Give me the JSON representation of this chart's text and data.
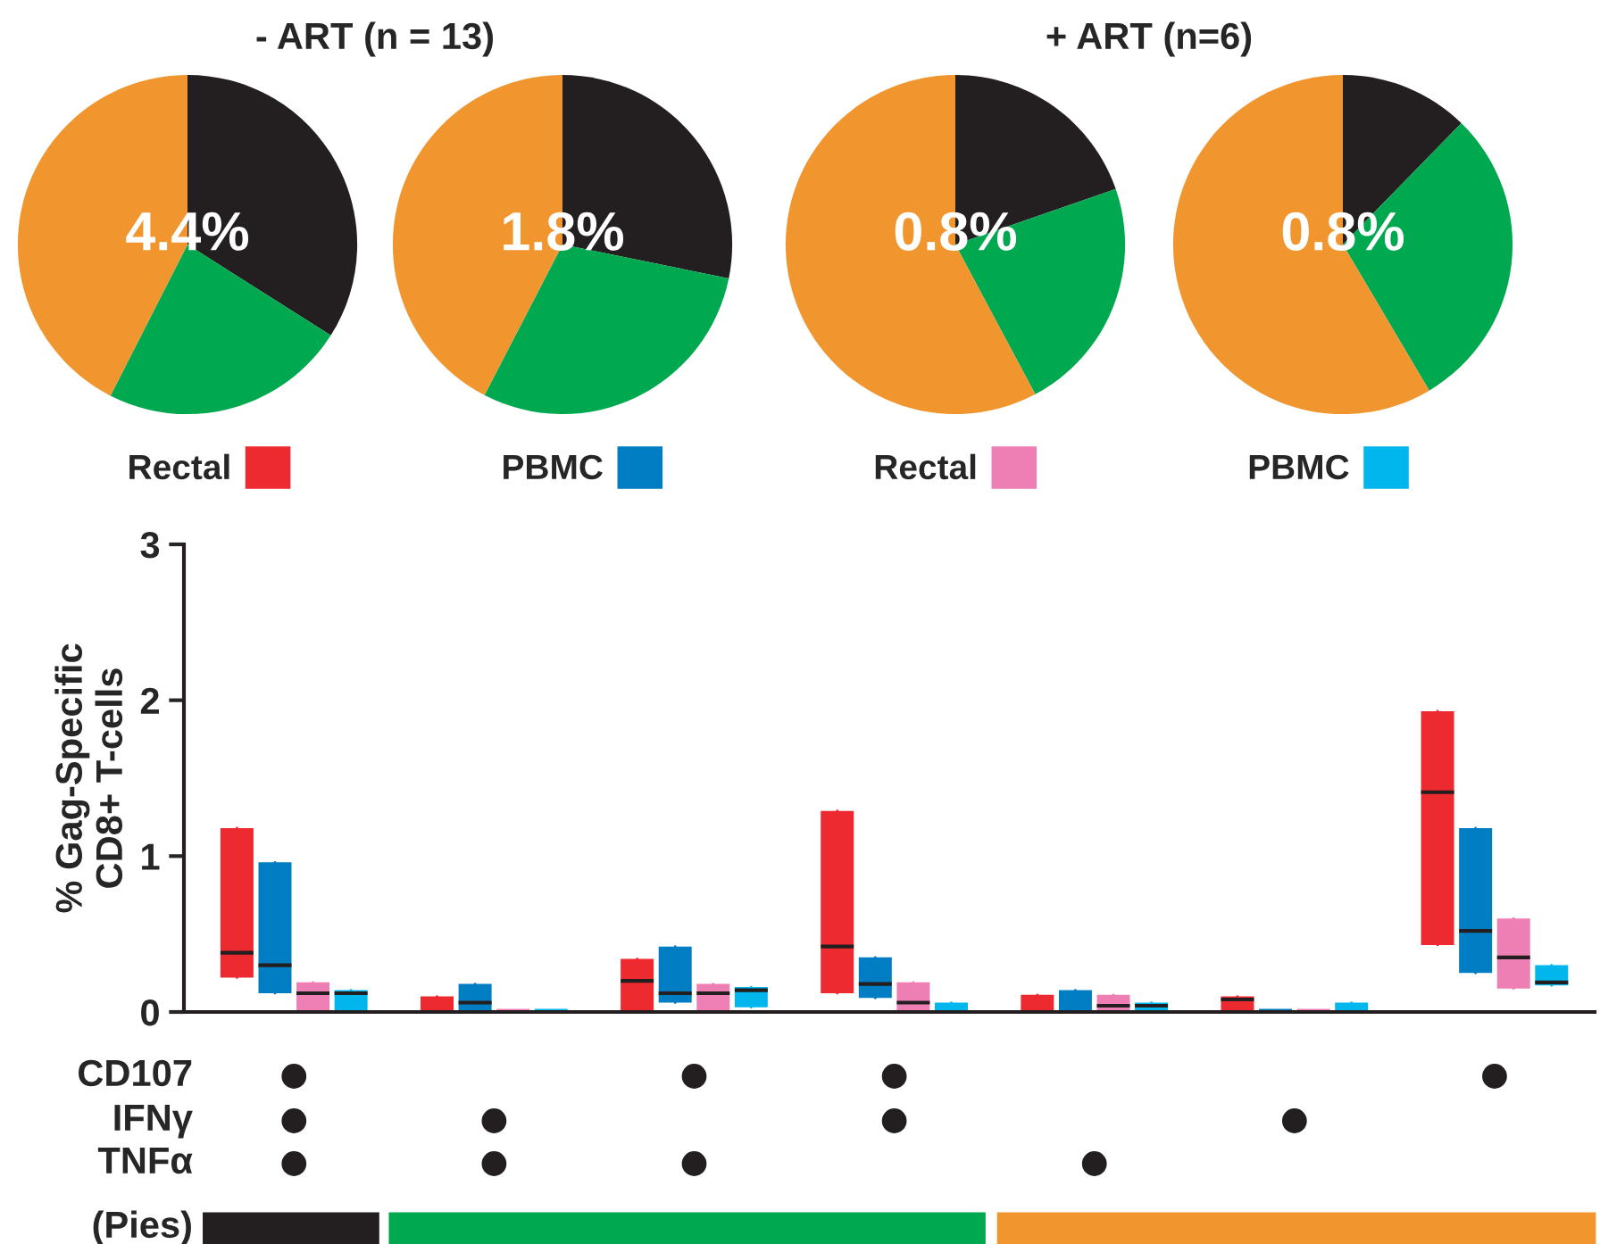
{
  "chart_data": [
    {
      "type": "pie",
      "title": "- ART (n = 13)",
      "categories": [
        null,
        null,
        null
      ],
      "values": [
        34,
        23.5,
        42.5
      ],
      "colors": [
        "#231f20",
        "#00a94f",
        "#f1962f"
      ],
      "annotations": [
        "4.4%"
      ]
    },
    {
      "type": "pie",
      "categories": [
        null,
        null,
        null
      ],
      "values": [
        28.2,
        29.4,
        42.4
      ],
      "colors": [
        "#231f20",
        "#00a94f",
        "#f1962f"
      ],
      "annotations": [
        "1.8%"
      ]
    },
    {
      "type": "pie",
      "title": "+ ART (n=6)",
      "categories": [
        null,
        null,
        null
      ],
      "values": [
        19.7,
        22.5,
        57.8
      ],
      "colors": [
        "#231f20",
        "#00a94f",
        "#f1962f"
      ],
      "annotations": [
        "0.8%"
      ]
    },
    {
      "type": "pie",
      "categories": [
        null,
        null,
        null
      ],
      "values": [
        12.3,
        29.2,
        58.5
      ],
      "colors": [
        "#231f20",
        "#00a94f",
        "#f1962f"
      ],
      "annotations": [
        "0.8%"
      ]
    },
    {
      "type": "box",
      "ylabel": "% Gag-Specific\nCD8+ T-cells",
      "categories": [
        null,
        null,
        null,
        null,
        null,
        null,
        null
      ],
      "ylim": [
        0,
        3
      ],
      "yticks": [
        0,
        1,
        2,
        3
      ],
      "legend": "top",
      "annotations": [
        "CD107",
        "IFNγ",
        "TNFα",
        "(Pies)"
      ],
      "series": [
        {
          "name": "Rectal",
          "color": "#ec2a2f",
          "boxes": [
            {
              "low": 0.22,
              "q1": 0.22,
              "median": 0.38,
              "q3": 1.18,
              "high": 1.18
            },
            {
              "low": 0,
              "q1": 0,
              "median": 0,
              "q3": 0.1,
              "high": 0.1
            },
            {
              "low": 0,
              "q1": 0,
              "median": 0.2,
              "q3": 0.34,
              "high": 0.34
            },
            {
              "low": 0.12,
              "q1": 0.12,
              "median": 0.42,
              "q3": 1.29,
              "high": 1.29
            },
            {
              "low": 0,
              "q1": 0,
              "median": 0,
              "q3": 0.11,
              "high": 0.11
            },
            {
              "low": 0,
              "q1": 0,
              "median": 0.08,
              "q3": 0.1,
              "high": 0.1
            },
            {
              "low": 0.43,
              "q1": 0.43,
              "median": 1.41,
              "q3": 1.93,
              "high": 1.93
            }
          ]
        },
        {
          "name": "PBMC",
          "color": "#007dc3",
          "boxes": [
            {
              "low": 0.12,
              "q1": 0.12,
              "median": 0.3,
              "q3": 0.96,
              "high": 0.96
            },
            {
              "low": 0,
              "q1": 0,
              "median": 0.06,
              "q3": 0.18,
              "high": 0.18
            },
            {
              "low": 0.06,
              "q1": 0.06,
              "median": 0.12,
              "q3": 0.42,
              "high": 0.42
            },
            {
              "low": 0.09,
              "q1": 0.09,
              "median": 0.18,
              "q3": 0.35,
              "high": 0.35
            },
            {
              "low": 0,
              "q1": 0,
              "median": 0,
              "q3": 0.14,
              "high": 0.14
            },
            {
              "low": 0,
              "q1": 0,
              "median": 0,
              "q3": 0,
              "high": 0
            },
            {
              "low": 0.25,
              "q1": 0.25,
              "median": 0.52,
              "q3": 1.18,
              "high": 1.18
            }
          ]
        },
        {
          "name": "Rectal",
          "color": "#ee7fb4",
          "boxes": [
            {
              "low": 0,
              "q1": 0,
              "median": 0.12,
              "q3": 0.19,
              "high": 0.19
            },
            {
              "low": 0,
              "q1": 0,
              "median": 0,
              "q3": 0,
              "high": 0
            },
            {
              "low": 0,
              "q1": 0,
              "median": 0.12,
              "q3": 0.18,
              "high": 0.18
            },
            {
              "low": 0,
              "q1": 0,
              "median": 0.06,
              "q3": 0.19,
              "high": 0.19
            },
            {
              "low": 0,
              "q1": 0,
              "median": 0.04,
              "q3": 0.11,
              "high": 0.11
            },
            {
              "low": 0,
              "q1": 0,
              "median": 0,
              "q3": 0,
              "high": 0
            },
            {
              "low": 0.15,
              "q1": 0.15,
              "median": 0.35,
              "q3": 0.6,
              "high": 0.6
            }
          ]
        },
        {
          "name": "PBMC",
          "color": "#00b6ed",
          "boxes": [
            {
              "low": 0,
              "q1": 0,
              "median": 0.12,
              "q3": 0.14,
              "high": 0.14
            },
            {
              "low": 0,
              "q1": 0,
              "median": 0,
              "q3": 0,
              "high": 0
            },
            {
              "low": 0.03,
              "q1": 0.03,
              "median": 0.14,
              "q3": 0.16,
              "high": 0.16
            },
            {
              "low": 0,
              "q1": 0,
              "median": 0,
              "q3": 0.06,
              "high": 0.06
            },
            {
              "low": 0,
              "q1": 0,
              "median": 0.04,
              "q3": 0.06,
              "high": 0.06
            },
            {
              "low": 0,
              "q1": 0,
              "median": 0,
              "q3": 0.06,
              "high": 0.06
            },
            {
              "low": 0.17,
              "q1": 0.17,
              "median": 0.19,
              "q3": 0.3,
              "high": 0.3
            }
          ]
        }
      ]
    }
  ]
}
